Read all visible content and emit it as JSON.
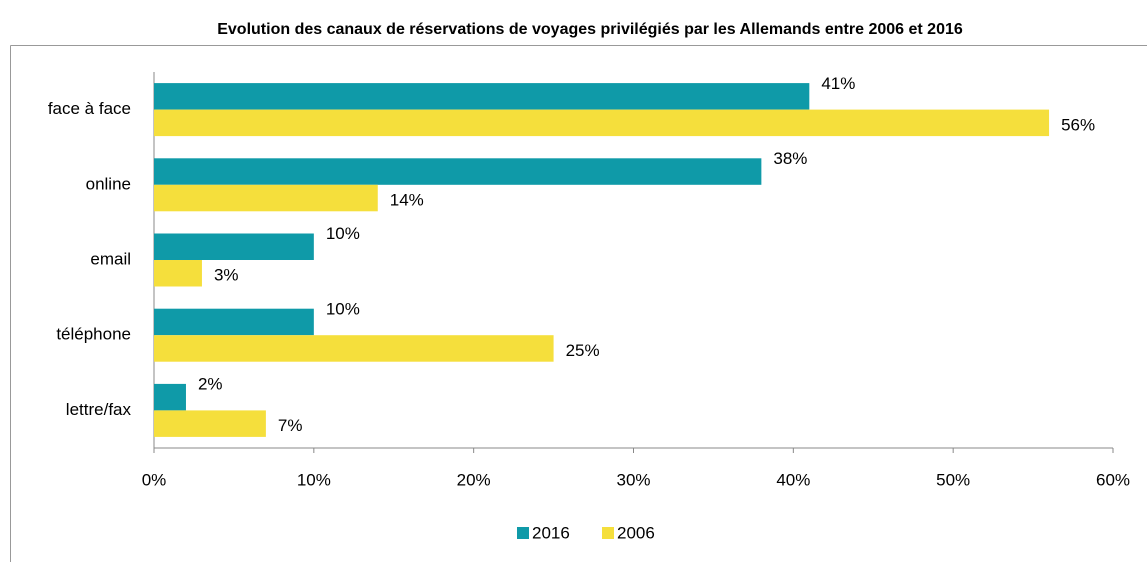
{
  "chart_data": {
    "type": "bar",
    "orientation": "horizontal",
    "title": "Evolution des canaux de réservations de voyages privilégiés par les Allemands entre 2006 et 2016",
    "categories": [
      "face à face",
      "online",
      "email",
      "téléphone",
      "lettre/fax"
    ],
    "series": [
      {
        "name": "2016",
        "color": "#0f9aa8",
        "values": [
          41,
          38,
          10,
          10,
          2
        ],
        "value_labels": [
          "41%",
          "38%",
          "10%",
          "10%",
          "2%"
        ]
      },
      {
        "name": "2006",
        "color": "#f5df3c",
        "values": [
          56,
          14,
          3,
          25,
          7
        ],
        "value_labels": [
          "56%",
          "14%",
          "3%",
          "25%",
          "7%"
        ]
      }
    ],
    "xlim": [
      0,
      60
    ],
    "xticks": [
      {
        "value": 0,
        "label": "0%"
      },
      {
        "value": 10,
        "label": "10%"
      },
      {
        "value": 20,
        "label": "20%"
      },
      {
        "value": 30,
        "label": "30%"
      },
      {
        "value": 40,
        "label": "40%"
      },
      {
        "value": 50,
        "label": "50%"
      },
      {
        "value": 60,
        "label": "60%"
      }
    ],
    "legend": "bottom"
  }
}
